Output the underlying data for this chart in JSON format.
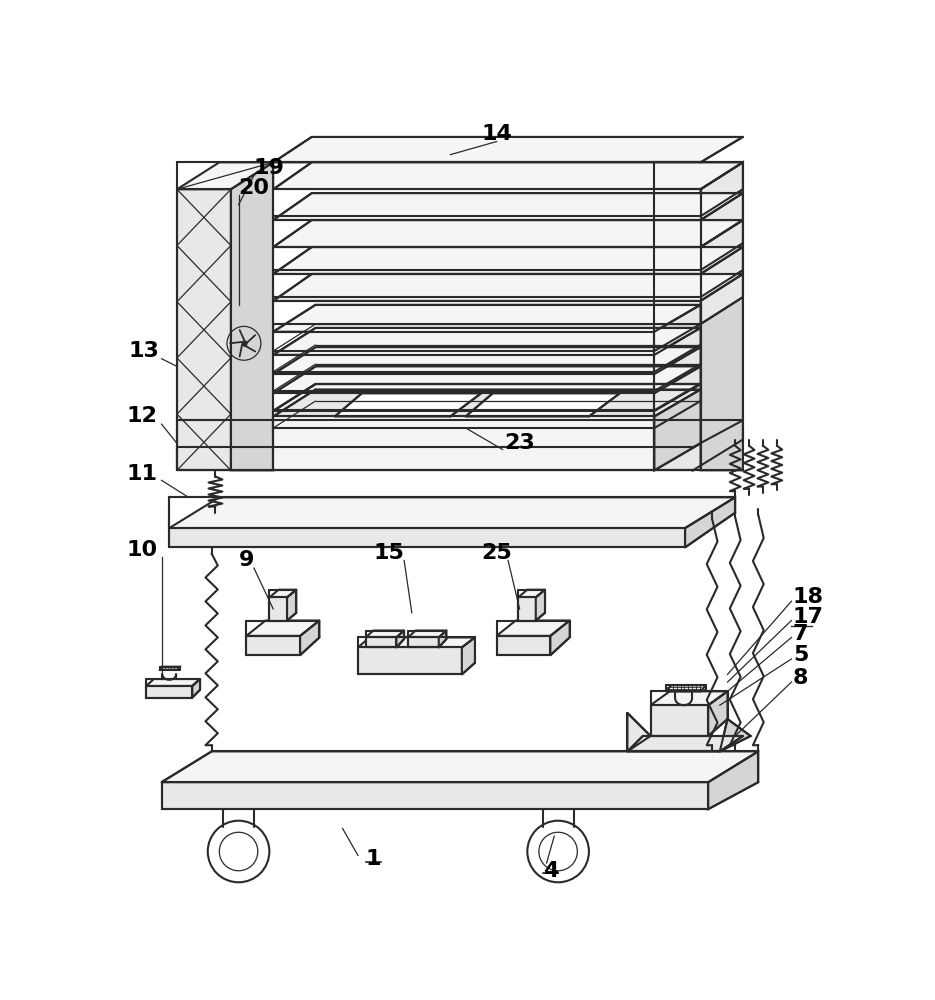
{
  "bg": "#ffffff",
  "lc": "#2a2a2a",
  "lw": 1.5,
  "lw_thin": 0.9,
  "fill_light": "#f5f5f5",
  "fill_mid": "#e8e8e8",
  "fill_dark": "#d5d5d5",
  "fill_white": "#ffffff"
}
